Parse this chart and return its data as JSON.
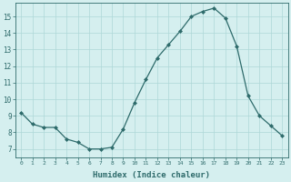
{
  "x": [
    0,
    1,
    2,
    3,
    4,
    5,
    6,
    7,
    8,
    9,
    10,
    11,
    12,
    13,
    14,
    15,
    16,
    17,
    18,
    19,
    20,
    21,
    22,
    23
  ],
  "y": [
    9.2,
    8.5,
    8.3,
    8.3,
    7.6,
    7.4,
    7.0,
    7.0,
    7.1,
    8.2,
    9.8,
    11.2,
    12.5,
    13.3,
    14.1,
    15.0,
    15.3,
    15.5,
    14.9,
    13.2,
    10.2,
    9.0,
    8.4,
    7.8
  ],
  "xlim": [
    -0.5,
    23.5
  ],
  "ylim": [
    6.5,
    15.8
  ],
  "yticks": [
    7,
    8,
    9,
    10,
    11,
    12,
    13,
    14,
    15
  ],
  "xticks": [
    0,
    1,
    2,
    3,
    4,
    5,
    6,
    7,
    8,
    9,
    10,
    11,
    12,
    13,
    14,
    15,
    16,
    17,
    18,
    19,
    20,
    21,
    22,
    23
  ],
  "xlabel": "Humidex (Indice chaleur)",
  "line_color": "#2e6b6b",
  "marker_color": "#2e6b6b",
  "bg_color": "#d5efef",
  "grid_color": "#aed8d8",
  "tick_color": "#2e6b6b",
  "label_color": "#2e6b6b",
  "figwidth": 3.2,
  "figheight": 2.0,
  "dpi": 100
}
